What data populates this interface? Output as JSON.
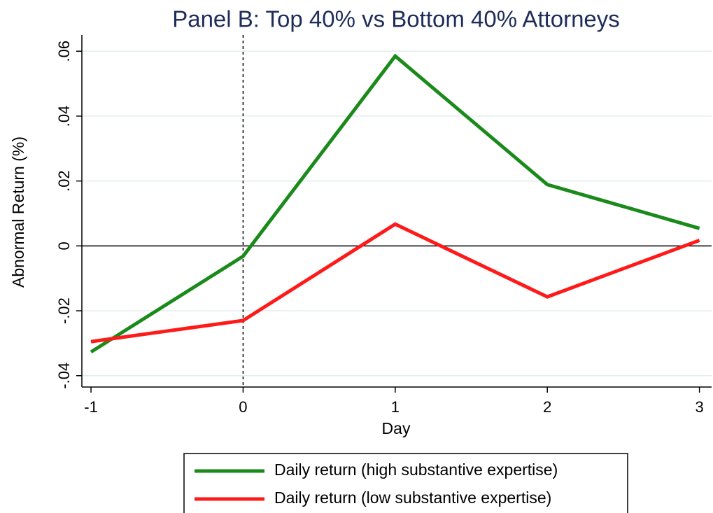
{
  "chart_data": {
    "type": "line",
    "title": "Panel B: Top 40% vs Bottom 40% Attorneys",
    "x_label": "Day",
    "y_label": "Abnormal Return (%)",
    "x": [
      -1,
      0,
      1,
      2,
      3
    ],
    "xlim": [
      -1.06,
      3.08
    ],
    "xticks": [
      -1,
      0,
      1,
      2,
      3
    ],
    "ylim": [
      -0.0435,
      0.065
    ],
    "yticks": [
      {
        "value": -0.04,
        "label": "-.04"
      },
      {
        "value": -0.02,
        "label": "-.02"
      },
      0,
      {
        "value": 0.02,
        "label": ".02"
      },
      {
        "value": 0.04,
        "label": ".04"
      },
      {
        "value": 0.06,
        "label": ".06"
      }
    ],
    "grid": true,
    "hline": 0,
    "vline": 0,
    "series": [
      {
        "name": "Daily return (high substantive expertise)",
        "color": "#1a8a1a",
        "values": [
          -0.0327,
          -0.0032,
          0.0585,
          0.0189,
          0.0054
        ]
      },
      {
        "name": "Daily return (low substantive expertise)",
        "color": "#ff1a1a",
        "values": [
          -0.0295,
          -0.023,
          0.0067,
          -0.0157,
          0.0017
        ]
      }
    ]
  }
}
